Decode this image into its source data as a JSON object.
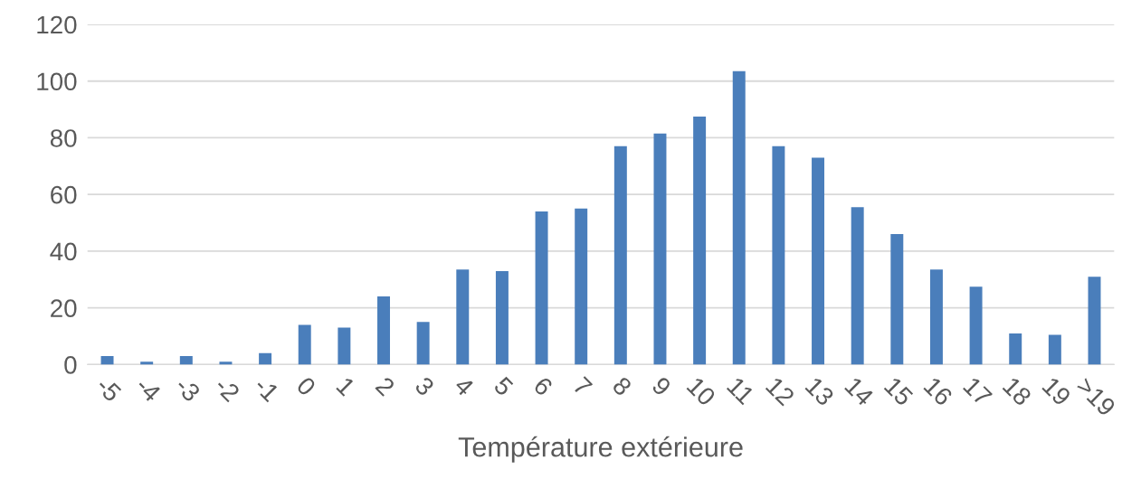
{
  "chart_data": {
    "type": "bar",
    "xlabel": "Température extérieure",
    "categories": [
      "-5",
      "-4",
      "-3",
      "-2",
      "-1",
      "0",
      "1",
      "2",
      "3",
      "4",
      "5",
      "6",
      "7",
      "8",
      "9",
      "10",
      "11",
      "12",
      "13",
      "14",
      "15",
      "16",
      "17",
      "18",
      "19",
      ">19"
    ],
    "values": [
      3,
      1,
      3,
      1,
      4,
      14,
      13,
      24,
      15,
      33.5,
      33,
      54,
      55,
      77,
      81.5,
      87.5,
      103.5,
      77,
      73,
      55.5,
      46,
      33.5,
      27.5,
      11,
      10.5,
      31
    ],
    "color": "#4a7ebb",
    "ylim": [
      0,
      120
    ],
    "yticks": [
      0,
      20,
      40,
      60,
      80,
      100,
      120
    ],
    "grid": "y"
  }
}
